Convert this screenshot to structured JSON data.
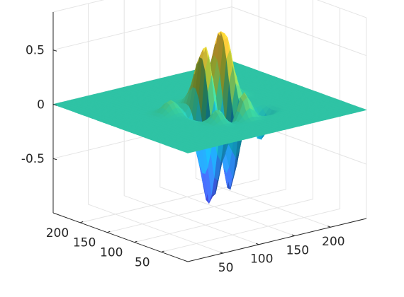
{
  "chart_data": {
    "type": "surface",
    "title": "",
    "xlabel": "",
    "ylabel": "",
    "zlabel": "",
    "colormap": "parula",
    "grid": true,
    "view": "3d-perspective",
    "xlim": [
      1,
      250
    ],
    "ylim": [
      1,
      250
    ],
    "zlim": [
      -1,
      0.85
    ],
    "x_ticks": [
      50,
      100,
      150,
      200
    ],
    "y_ticks": [
      50,
      100,
      150,
      200
    ],
    "z_ticks": [
      -0.5,
      0,
      0.5
    ],
    "x_tick_labels": [
      "50",
      "100",
      "150",
      "200"
    ],
    "y_tick_labels": [
      "50",
      "100",
      "150",
      "200"
    ],
    "z_tick_labels": [
      "-0.5",
      "0",
      "0.5"
    ],
    "features": [
      {
        "kind": "peak",
        "x": 118,
        "y": 120,
        "z": 0.85
      },
      {
        "kind": "peak",
        "x": 142,
        "y": 123,
        "z": 0.8
      },
      {
        "kind": "trough",
        "x": 108,
        "y": 103,
        "z": -1.0
      },
      {
        "kind": "trough",
        "x": 131,
        "y": 101,
        "z": -0.9
      }
    ]
  }
}
